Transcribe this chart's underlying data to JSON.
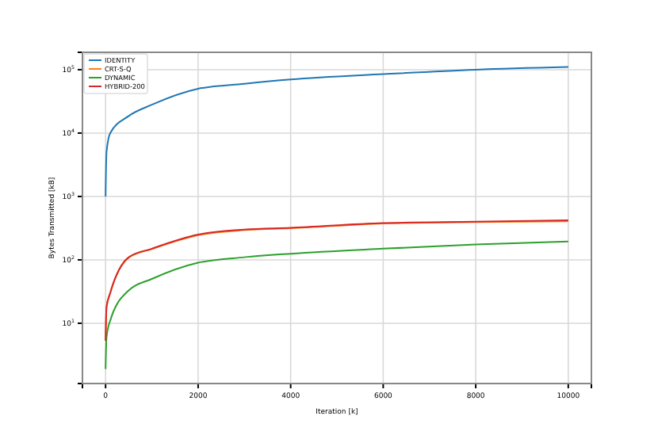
{
  "chart_data": {
    "type": "line",
    "xlabel": "Iteration [k]",
    "ylabel": "Bytes Transmitted [kB]",
    "log": "y",
    "grid": true,
    "legend": "top left",
    "line_style": "solid",
    "marker": "none",
    "xlim": [
      -500,
      10500
    ],
    "xticks": [
      0,
      2000,
      4000,
      6000,
      8000,
      10000
    ],
    "ylim": [
      1.12,
      188000
    ],
    "yticks": [
      {
        "value": 10,
        "label": "10$^{1}$"
      },
      {
        "value": 100,
        "label": "10$^{2}$"
      },
      {
        "value": 1000,
        "label": "10$^{3}$"
      },
      {
        "value": 10000,
        "label": "10$^{4}$"
      },
      {
        "value": 100000,
        "label": "10$^{5}$"
      }
    ],
    "x": [
      0,
      20,
      100,
      500,
      1000,
      2000,
      3000,
      4000,
      6000,
      8000,
      10000
    ],
    "series": [
      {
        "name": "IDENTITY",
        "color": "#1f77b4",
        "values": [
          1000,
          5000,
          10000,
          18600,
          28000,
          50000,
          60000,
          70000,
          85000,
          100000,
          110000
        ]
      },
      {
        "name": "CRT-S-Q",
        "color": "#ff7f0e",
        "values": [
          5.3,
          18,
          30,
          108,
          148,
          245,
          295,
          315,
          375,
          395,
          405
        ]
      },
      {
        "name": "DYNAMIC",
        "color": "#2ca02c",
        "values": [
          1.9,
          6,
          11,
          33,
          50,
          90,
          110,
          125,
          150,
          175,
          195
        ]
      },
      {
        "name": "HYBRID-200",
        "color": "#d62728",
        "values": [
          5.3,
          18,
          30,
          110,
          150,
          250,
          300,
          320,
          380,
          400,
          420
        ]
      }
    ]
  }
}
